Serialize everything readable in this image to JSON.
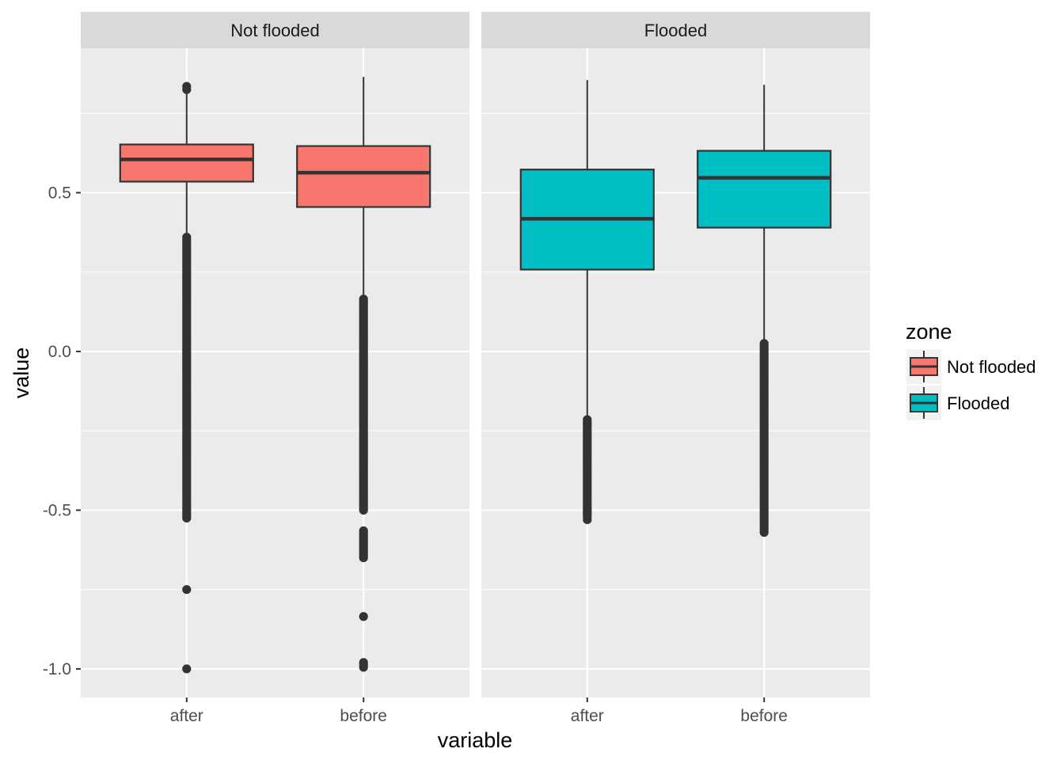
{
  "chart_data": {
    "type": "boxplot",
    "facets": [
      "Not flooded",
      "Flooded"
    ],
    "categories": [
      "after",
      "before"
    ],
    "xlabel": "variable",
    "ylabel": "value",
    "ylim": [
      -1.09,
      0.955
    ],
    "yticks": [
      0.5,
      0.0,
      -0.5,
      -1.0
    ],
    "ytick_labels": [
      "0.5",
      "0.0",
      "-0.5",
      "-1.0"
    ],
    "legend": {
      "title": "zone",
      "position": "right",
      "entries": [
        {
          "label": "Not flooded",
          "color": "#F8766D"
        },
        {
          "label": "Flooded",
          "color": "#00BFC4"
        }
      ]
    },
    "grid": true,
    "boxes": [
      {
        "facet": "Not flooded",
        "category": "after",
        "zone": "Not flooded",
        "whisker_low": 0.36,
        "q1": 0.535,
        "median": 0.605,
        "q3": 0.652,
        "whisker_high": 0.82,
        "outliers": [
          0.835,
          0.825,
          0.36,
          0.34,
          0.3,
          0.25,
          0.2,
          0.15,
          0.1,
          0.05,
          0.0,
          -0.05,
          -0.1,
          -0.15,
          -0.2,
          -0.25,
          -0.3,
          -0.35,
          -0.4,
          -0.45,
          -0.48,
          -0.525,
          -0.75,
          -1.0
        ]
      },
      {
        "facet": "Not flooded",
        "category": "before",
        "zone": "Not flooded",
        "whisker_low": 0.165,
        "q1": 0.455,
        "median": 0.563,
        "q3": 0.647,
        "whisker_high": 0.865,
        "outliers": [
          0.165,
          0.14,
          0.1,
          0.05,
          0.0,
          -0.05,
          -0.1,
          -0.15,
          -0.2,
          -0.25,
          -0.3,
          -0.35,
          -0.4,
          -0.45,
          -0.5,
          -0.565,
          -0.58,
          -0.63,
          -0.65,
          -0.835,
          -0.98,
          -0.995
        ]
      },
      {
        "facet": "Flooded",
        "category": "after",
        "zone": "Flooded",
        "whisker_low": -0.215,
        "q1": 0.258,
        "median": 0.418,
        "q3": 0.573,
        "whisker_high": 0.855,
        "outliers": [
          -0.215,
          -0.25,
          -0.3,
          -0.35,
          -0.4,
          -0.45,
          -0.49,
          -0.52,
          -0.53
        ]
      },
      {
        "facet": "Flooded",
        "category": "before",
        "zone": "Flooded",
        "whisker_low": 0.025,
        "q1": 0.39,
        "median": 0.547,
        "q3": 0.632,
        "whisker_high": 0.84,
        "outliers": [
          0.025,
          0.0,
          -0.05,
          -0.1,
          -0.15,
          -0.2,
          -0.25,
          -0.3,
          -0.35,
          -0.4,
          -0.45,
          -0.5,
          -0.54,
          -0.57
        ]
      }
    ]
  }
}
